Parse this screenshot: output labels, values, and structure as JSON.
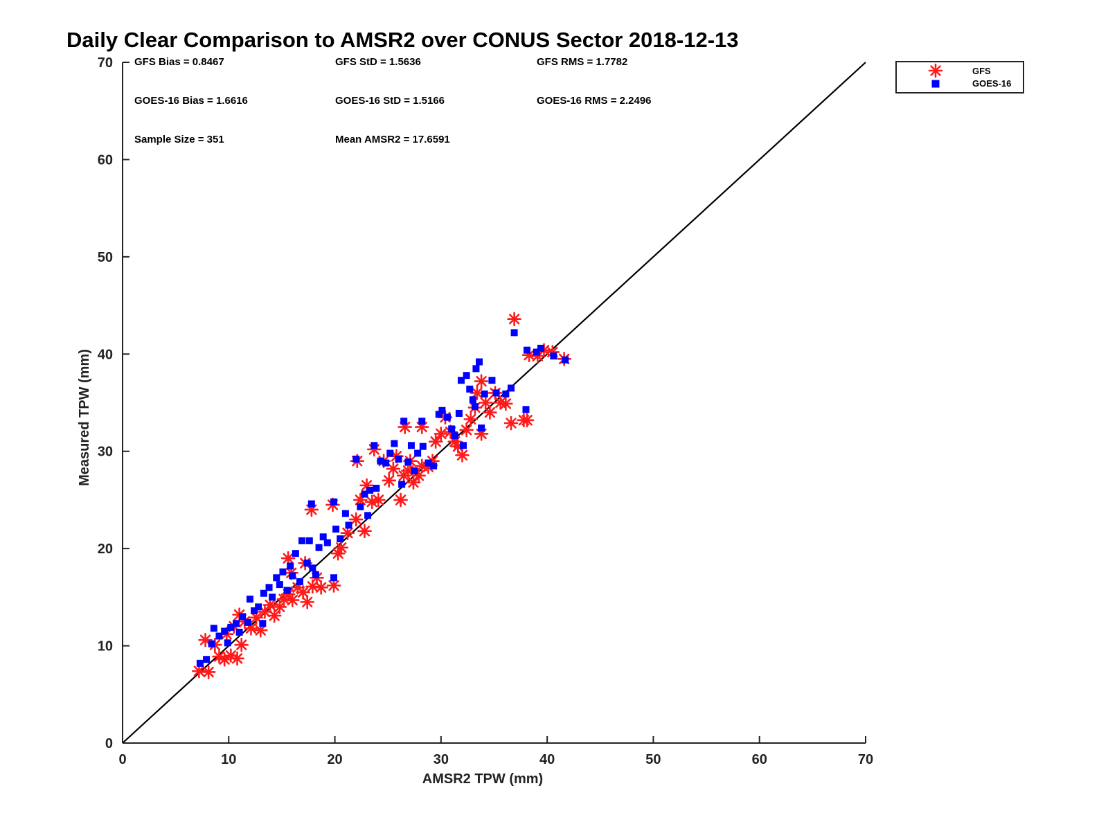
{
  "chart_data": {
    "type": "scatter",
    "title": "Daily Clear Comparison to AMSR2 over CONUS Sector 2018-12-13",
    "xlabel": "AMSR2 TPW (mm)",
    "ylabel": "Measured TPW (mm)",
    "xlim": [
      0,
      70
    ],
    "ylim": [
      0,
      70
    ],
    "xticks": [
      "0",
      "10",
      "20",
      "30",
      "40",
      "50",
      "60",
      "70"
    ],
    "yticks": [
      "0",
      "10",
      "20",
      "30",
      "40",
      "50",
      "60",
      "70"
    ],
    "reference_line": {
      "x": [
        0,
        70
      ],
      "y": [
        0,
        70
      ]
    },
    "legend": [
      "GFS",
      "GOES-16"
    ],
    "legend_position": "top-right outside",
    "colors": {
      "GFS": "#ff1a1a",
      "GOES-16": "#0000ff",
      "reference": "#000000"
    },
    "stats": {
      "gfs_bias": "GFS Bias = 0.8467",
      "gfs_std": "GFS StD = 1.5636",
      "gfs_rms": "GFS RMS = 1.7782",
      "goes_bias": "GOES-16 Bias = 1.6616",
      "goes_std": "GOES-16 StD = 1.5166",
      "goes_rms": "GOES-16 RMS = 2.2496",
      "sample_size": "Sample Size = 351",
      "mean_amsr2": "Mean AMSR2 = 17.6591"
    },
    "series": [
      {
        "name": "GFS",
        "marker": "asterisk",
        "points": [
          [
            7.2,
            7.4
          ],
          [
            8.1,
            7.3
          ],
          [
            7.8,
            10.6
          ],
          [
            8.7,
            10.1
          ],
          [
            9.1,
            8.9
          ],
          [
            9.6,
            8.6
          ],
          [
            10.2,
            9.0
          ],
          [
            10.8,
            8.7
          ],
          [
            11.2,
            10.1
          ],
          [
            9.8,
            11.2
          ],
          [
            10.5,
            12.0
          ],
          [
            11.0,
            13.2
          ],
          [
            11.5,
            12.5
          ],
          [
            12.1,
            11.8
          ],
          [
            12.6,
            12.9
          ],
          [
            13.0,
            11.6
          ],
          [
            13.4,
            13.5
          ],
          [
            13.9,
            14.2
          ],
          [
            14.3,
            13.1
          ],
          [
            14.8,
            14.0
          ],
          [
            15.2,
            14.8
          ],
          [
            15.6,
            15.3
          ],
          [
            16.0,
            14.7
          ],
          [
            16.5,
            16.0
          ],
          [
            17.0,
            15.5
          ],
          [
            17.4,
            14.5
          ],
          [
            17.9,
            16.1
          ],
          [
            18.3,
            17.0
          ],
          [
            18.7,
            16.0
          ],
          [
            15.9,
            17.5
          ],
          [
            15.6,
            19.0
          ],
          [
            17.2,
            18.5
          ],
          [
            17.8,
            24.0
          ],
          [
            19.8,
            24.5
          ],
          [
            19.9,
            16.2
          ],
          [
            20.3,
            19.5
          ],
          [
            20.6,
            20.1
          ],
          [
            21.2,
            21.6
          ],
          [
            22.0,
            23.0
          ],
          [
            22.4,
            25.0
          ],
          [
            22.8,
            21.8
          ],
          [
            22.1,
            29.0
          ],
          [
            23.0,
            26.5
          ],
          [
            23.5,
            24.8
          ],
          [
            23.7,
            30.2
          ],
          [
            24.1,
            25.0
          ],
          [
            24.6,
            29.0
          ],
          [
            25.1,
            27.0
          ],
          [
            25.5,
            28.2
          ],
          [
            25.8,
            29.5
          ],
          [
            26.2,
            25.0
          ],
          [
            26.5,
            27.5
          ],
          [
            26.9,
            28.0
          ],
          [
            26.6,
            32.5
          ],
          [
            27.1,
            29.0
          ],
          [
            27.4,
            26.8
          ],
          [
            27.9,
            27.5
          ],
          [
            28.2,
            28.5
          ],
          [
            28.2,
            32.5
          ],
          [
            28.8,
            28.4
          ],
          [
            29.2,
            29.0
          ],
          [
            29.5,
            31.0
          ],
          [
            30.0,
            31.8
          ],
          [
            30.4,
            33.5
          ],
          [
            30.9,
            32.0
          ],
          [
            31.3,
            31.0
          ],
          [
            31.6,
            30.5
          ],
          [
            32.0,
            29.6
          ],
          [
            32.4,
            32.2
          ],
          [
            32.8,
            33.3
          ],
          [
            33.2,
            34.5
          ],
          [
            33.4,
            36.0
          ],
          [
            33.8,
            37.2
          ],
          [
            33.8,
            31.8
          ],
          [
            34.2,
            35.0
          ],
          [
            34.6,
            34.0
          ],
          [
            35.1,
            36.0
          ],
          [
            35.6,
            35.0
          ],
          [
            36.1,
            34.9
          ],
          [
            36.6,
            32.9
          ],
          [
            36.9,
            43.6
          ],
          [
            37.8,
            33.2
          ],
          [
            38.1,
            33.2
          ],
          [
            38.3,
            39.9
          ],
          [
            39.1,
            39.8
          ],
          [
            39.7,
            40.4
          ],
          [
            40.5,
            40.2
          ],
          [
            41.6,
            39.5
          ]
        ]
      },
      {
        "name": "GOES-16",
        "marker": "square",
        "points": [
          [
            7.3,
            8.2
          ],
          [
            7.9,
            8.6
          ],
          [
            8.4,
            10.2
          ],
          [
            8.6,
            11.8
          ],
          [
            9.1,
            11.0
          ],
          [
            9.6,
            11.5
          ],
          [
            9.9,
            10.3
          ],
          [
            10.2,
            11.9
          ],
          [
            10.7,
            12.3
          ],
          [
            11.0,
            11.4
          ],
          [
            11.3,
            13.0
          ],
          [
            11.8,
            12.4
          ],
          [
            12.0,
            14.8
          ],
          [
            12.4,
            13.6
          ],
          [
            12.8,
            14.0
          ],
          [
            13.2,
            12.3
          ],
          [
            13.3,
            15.4
          ],
          [
            13.8,
            16.0
          ],
          [
            14.1,
            15.0
          ],
          [
            14.5,
            17.0
          ],
          [
            14.8,
            16.3
          ],
          [
            15.1,
            17.6
          ],
          [
            15.5,
            15.7
          ],
          [
            15.8,
            18.2
          ],
          [
            16.0,
            17.2
          ],
          [
            16.3,
            19.5
          ],
          [
            16.7,
            16.6
          ],
          [
            16.9,
            20.8
          ],
          [
            17.4,
            18.5
          ],
          [
            17.6,
            20.8
          ],
          [
            17.9,
            18.0
          ],
          [
            18.2,
            17.3
          ],
          [
            17.8,
            24.6
          ],
          [
            18.5,
            20.1
          ],
          [
            18.9,
            21.2
          ],
          [
            19.3,
            20.6
          ],
          [
            19.9,
            24.8
          ],
          [
            19.9,
            17.0
          ],
          [
            20.1,
            22.0
          ],
          [
            20.5,
            21.0
          ],
          [
            21.0,
            23.6
          ],
          [
            21.3,
            22.4
          ],
          [
            22.0,
            29.2
          ],
          [
            22.4,
            24.3
          ],
          [
            22.8,
            25.6
          ],
          [
            23.1,
            23.4
          ],
          [
            23.3,
            26.0
          ],
          [
            23.7,
            30.6
          ],
          [
            23.9,
            26.2
          ],
          [
            24.3,
            29.0
          ],
          [
            24.8,
            28.8
          ],
          [
            25.2,
            29.8
          ],
          [
            25.6,
            30.8
          ],
          [
            26.0,
            29.2
          ],
          [
            26.3,
            26.6
          ],
          [
            26.5,
            33.1
          ],
          [
            26.9,
            28.9
          ],
          [
            27.2,
            30.6
          ],
          [
            27.5,
            28.0
          ],
          [
            27.8,
            29.8
          ],
          [
            28.2,
            33.1
          ],
          [
            28.3,
            30.5
          ],
          [
            28.8,
            28.8
          ],
          [
            29.3,
            28.5
          ],
          [
            29.8,
            33.8
          ],
          [
            30.1,
            34.2
          ],
          [
            30.6,
            33.5
          ],
          [
            31.0,
            32.3
          ],
          [
            31.3,
            31.6
          ],
          [
            31.7,
            33.9
          ],
          [
            31.9,
            37.3
          ],
          [
            32.1,
            30.6
          ],
          [
            32.4,
            37.8
          ],
          [
            32.7,
            36.4
          ],
          [
            33.0,
            35.3
          ],
          [
            33.2,
            34.6
          ],
          [
            33.3,
            38.5
          ],
          [
            33.6,
            39.2
          ],
          [
            33.8,
            32.4
          ],
          [
            34.1,
            35.9
          ],
          [
            34.8,
            37.3
          ],
          [
            35.2,
            36.0
          ],
          [
            36.1,
            35.9
          ],
          [
            36.6,
            36.5
          ],
          [
            36.9,
            42.2
          ],
          [
            38.0,
            34.3
          ],
          [
            38.1,
            40.4
          ],
          [
            39.0,
            40.2
          ],
          [
            39.4,
            40.6
          ],
          [
            40.6,
            39.8
          ],
          [
            41.7,
            39.4
          ]
        ]
      }
    ]
  }
}
